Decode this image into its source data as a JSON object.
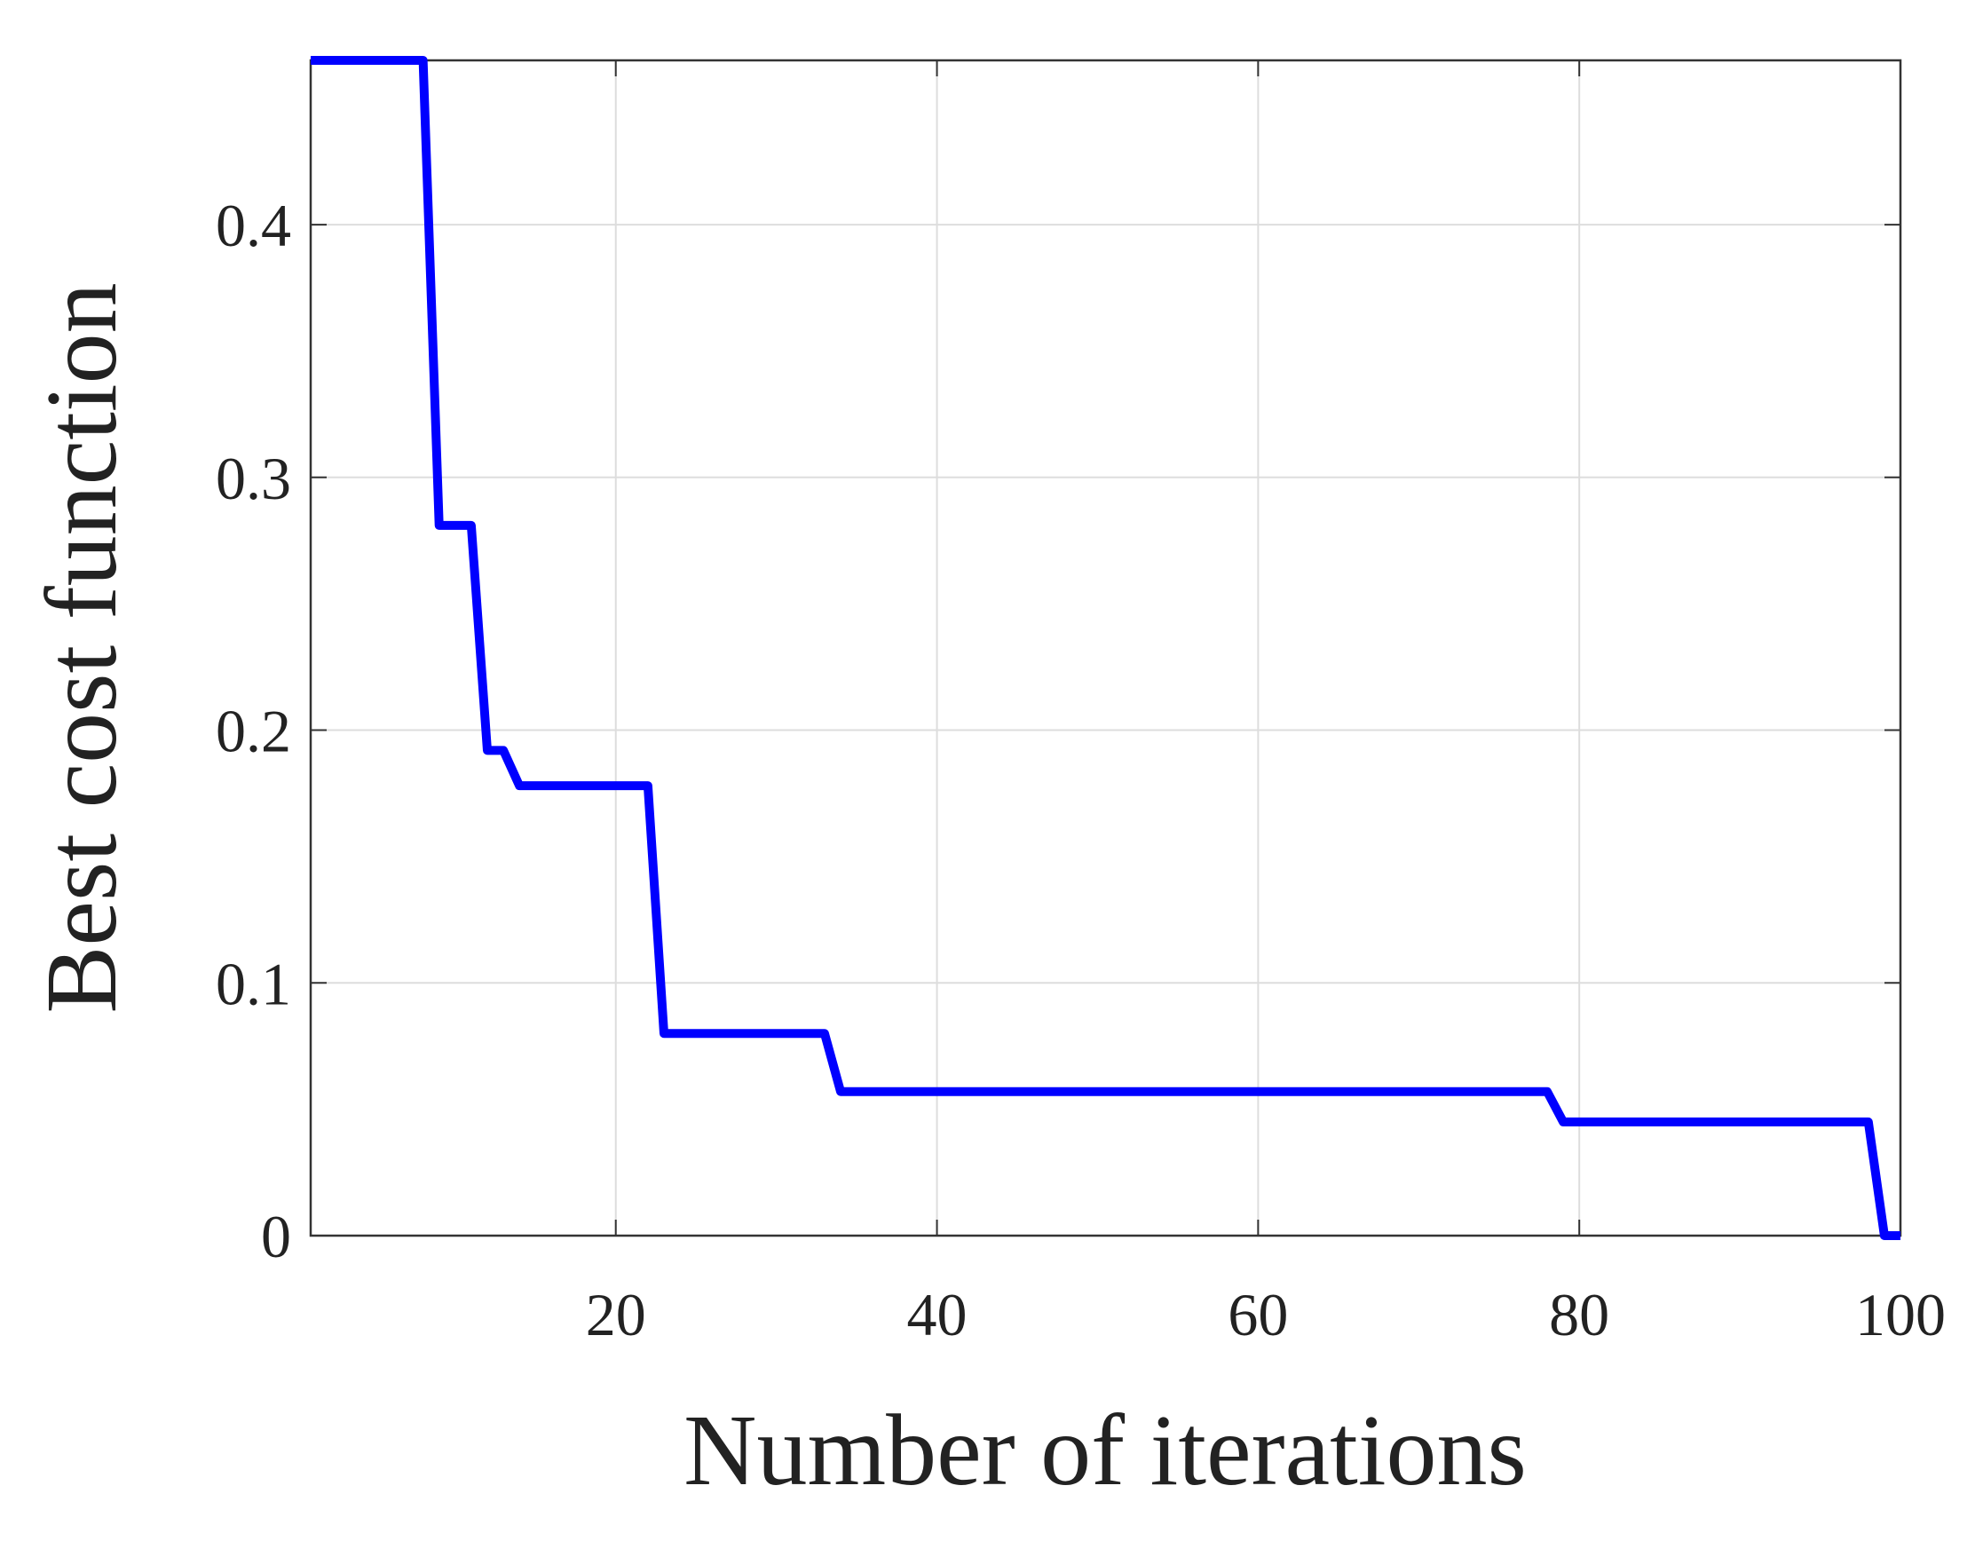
{
  "chart_data": {
    "type": "line",
    "x_label": "Number of iterations",
    "y_label": "Best cost function",
    "x": [
      1,
      8,
      9,
      11,
      12,
      13,
      14,
      22,
      23,
      33,
      34,
      78,
      79,
      98,
      99,
      100
    ],
    "series": [
      {
        "color": "#0000ff",
        "values": [
          0.465,
          0.465,
          0.281,
          0.281,
          0.192,
          0.192,
          0.178,
          0.178,
          0.08,
          0.08,
          0.057,
          0.057,
          0.045,
          0.045,
          0,
          0
        ]
      }
    ],
    "xlim": [
      1,
      100
    ],
    "ylim": [
      0,
      0.465
    ],
    "xticks": [
      20,
      40,
      60,
      80,
      100
    ],
    "yticks": [
      0,
      0.1,
      0.2,
      0.3,
      0.4
    ],
    "grid": true
  }
}
